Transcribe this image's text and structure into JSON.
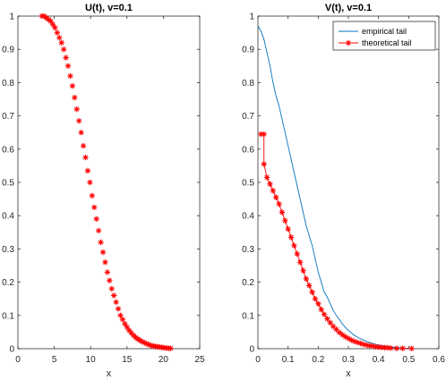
{
  "chart_data": [
    {
      "type": "scatter",
      "title": "U(t), v=0.1",
      "xlabel": "x",
      "ylabel": "",
      "xlim": [
        0,
        25
      ],
      "ylim": [
        0,
        1
      ],
      "xticks": [
        0,
        5,
        10,
        15,
        20,
        25
      ],
      "yticks": [
        0,
        0.1,
        0.2,
        0.3,
        0.4,
        0.5,
        0.6,
        0.7,
        0.8,
        0.9,
        1
      ],
      "grid": false,
      "color": "#ff0000",
      "marker": "asterisk",
      "series": [
        {
          "x": [
            3.3,
            3.6,
            3.9,
            4.2,
            4.5,
            4.8,
            5.1,
            5.4,
            5.7,
            6.0,
            6.3,
            6.6,
            6.9,
            7.2,
            7.5,
            7.8,
            8.1,
            8.4,
            8.7,
            9.0,
            9.3,
            9.6,
            9.9,
            10.2,
            10.5,
            10.8,
            11.1,
            11.4,
            11.7,
            12.0,
            12.3,
            12.6,
            12.9,
            13.2,
            13.5,
            13.8,
            14.1,
            14.4,
            14.7,
            15.0,
            15.3,
            15.6,
            15.9,
            16.2,
            16.5,
            16.8,
            17.1,
            17.4,
            17.7,
            18.0,
            18.3,
            18.6,
            18.9,
            19.2,
            19.5,
            19.8,
            20.1,
            20.4,
            20.7,
            21.0
          ],
          "y": [
            1.0,
            1.0,
            0.995,
            0.99,
            0.985,
            0.975,
            0.965,
            0.95,
            0.935,
            0.92,
            0.9,
            0.875,
            0.85,
            0.82,
            0.79,
            0.755,
            0.72,
            0.685,
            0.65,
            0.61,
            0.575,
            0.535,
            0.5,
            0.46,
            0.425,
            0.39,
            0.355,
            0.32,
            0.29,
            0.26,
            0.23,
            0.205,
            0.18,
            0.16,
            0.14,
            0.12,
            0.1,
            0.088,
            0.075,
            0.065,
            0.055,
            0.047,
            0.04,
            0.034,
            0.029,
            0.025,
            0.021,
            0.018,
            0.015,
            0.012,
            0.01,
            0.008,
            0.007,
            0.006,
            0.005,
            0.004,
            0.003,
            0.002,
            0.0015,
            0.001
          ]
        }
      ]
    },
    {
      "type": "line",
      "title": "V(t), v=0.1",
      "xlabel": "x",
      "ylabel": "",
      "xlim": [
        0,
        0.6
      ],
      "ylim": [
        0,
        1
      ],
      "xticks": [
        0,
        0.1,
        0.2,
        0.3,
        0.4,
        0.5,
        0.6
      ],
      "yticks": [
        0,
        0.1,
        0.2,
        0.3,
        0.4,
        0.5,
        0.6,
        0.7,
        0.8,
        0.9,
        1
      ],
      "grid": false,
      "legend": "top-right",
      "series": [
        {
          "name": "empirical tail",
          "color": "#0072bd",
          "marker": "none",
          "x": [
            0.0,
            0.01,
            0.02,
            0.03,
            0.04,
            0.05,
            0.06,
            0.07,
            0.08,
            0.09,
            0.1,
            0.11,
            0.12,
            0.13,
            0.14,
            0.15,
            0.16,
            0.17,
            0.18,
            0.19,
            0.2,
            0.21,
            0.22,
            0.23,
            0.24,
            0.25,
            0.26,
            0.27,
            0.28,
            0.29,
            0.3,
            0.32,
            0.34,
            0.36,
            0.38,
            0.4,
            0.42,
            0.44,
            0.46,
            0.48,
            0.5
          ],
          "y": [
            0.97,
            0.955,
            0.93,
            0.89,
            0.85,
            0.8,
            0.76,
            0.73,
            0.69,
            0.65,
            0.61,
            0.57,
            0.53,
            0.49,
            0.45,
            0.41,
            0.37,
            0.34,
            0.31,
            0.27,
            0.23,
            0.2,
            0.17,
            0.155,
            0.135,
            0.115,
            0.1,
            0.088,
            0.075,
            0.064,
            0.055,
            0.04,
            0.03,
            0.022,
            0.016,
            0.011,
            0.008,
            0.005,
            0.003,
            0.002,
            0.001
          ]
        },
        {
          "name": "theoretical tail",
          "color": "#ff0000",
          "marker": "asterisk",
          "x": [
            0.01,
            0.02,
            0.02,
            0.03,
            0.04,
            0.05,
            0.06,
            0.07,
            0.08,
            0.09,
            0.1,
            0.11,
            0.12,
            0.13,
            0.14,
            0.15,
            0.16,
            0.17,
            0.18,
            0.19,
            0.2,
            0.21,
            0.22,
            0.23,
            0.24,
            0.25,
            0.26,
            0.27,
            0.28,
            0.29,
            0.3,
            0.31,
            0.32,
            0.33,
            0.34,
            0.35,
            0.36,
            0.37,
            0.38,
            0.39,
            0.4,
            0.41,
            0.42,
            0.43,
            0.44,
            0.46,
            0.48,
            0.51
          ],
          "y": [
            0.645,
            0.645,
            0.555,
            0.515,
            0.495,
            0.475,
            0.455,
            0.435,
            0.41,
            0.385,
            0.36,
            0.335,
            0.31,
            0.285,
            0.26,
            0.235,
            0.21,
            0.19,
            0.17,
            0.15,
            0.135,
            0.118,
            0.103,
            0.09,
            0.078,
            0.067,
            0.058,
            0.049,
            0.042,
            0.036,
            0.031,
            0.026,
            0.022,
            0.019,
            0.016,
            0.013,
            0.011,
            0.009,
            0.008,
            0.006,
            0.005,
            0.004,
            0.003,
            0.003,
            0.002,
            0.001,
            0.001,
            0.0005
          ]
        }
      ]
    }
  ]
}
